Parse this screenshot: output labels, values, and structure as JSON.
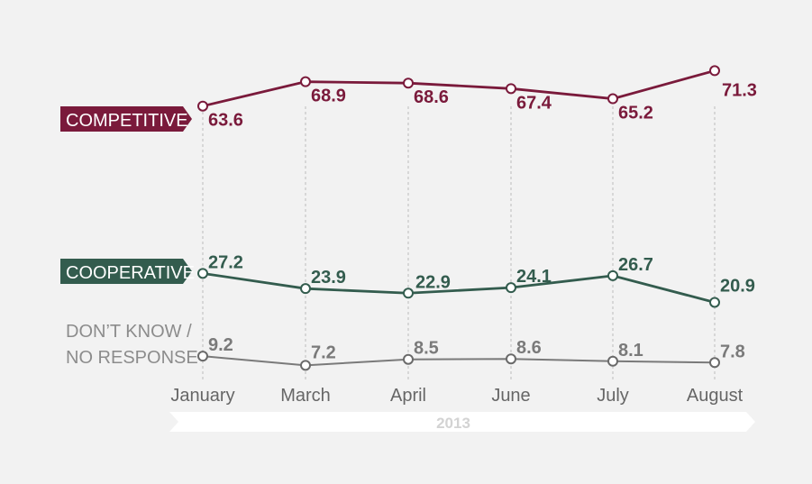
{
  "chart_data": {
    "type": "line",
    "categories": [
      "January",
      "March",
      "April",
      "June",
      "July",
      "August"
    ],
    "x_group_label": "2013",
    "ylim": [
      0,
      80
    ],
    "grid": "vertical dashed lines at each category",
    "series": [
      {
        "name": "COMPETITIVE",
        "values": [
          63.6,
          68.9,
          68.6,
          67.4,
          65.2,
          71.3
        ],
        "color": "#7a1a3b"
      },
      {
        "name": "COOPERATIVE",
        "values": [
          27.2,
          23.9,
          22.9,
          24.1,
          26.7,
          20.9
        ],
        "color": "#335c4e"
      },
      {
        "name_lines": [
          "DON’T KNOW /",
          "NO RESPONSE"
        ],
        "values": [
          9.2,
          7.2,
          8.5,
          8.6,
          8.1,
          7.8
        ],
        "color": "#7a7a7a"
      }
    ]
  }
}
